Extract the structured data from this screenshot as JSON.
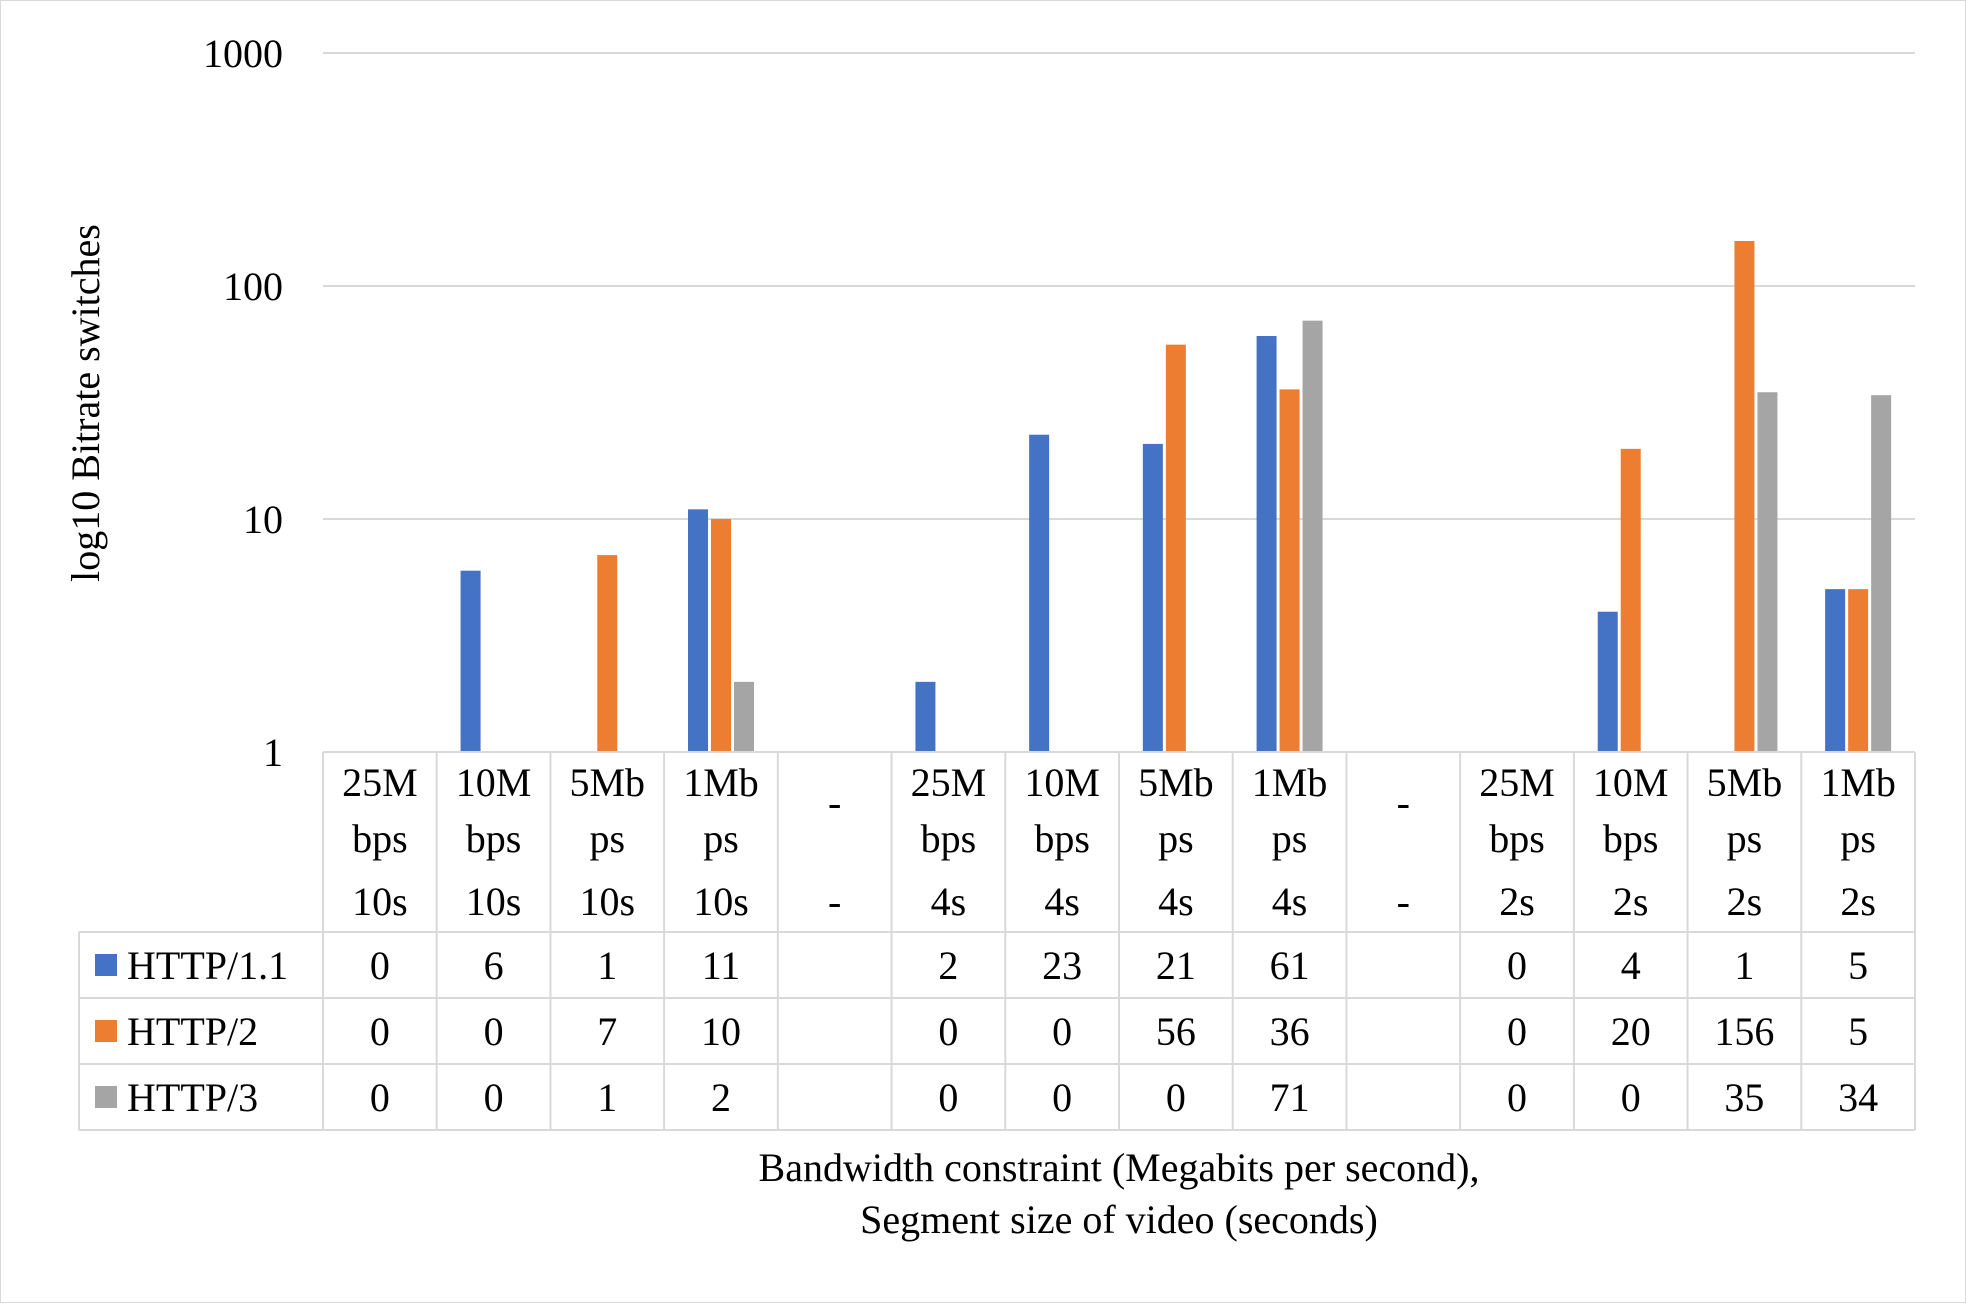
{
  "chart_data": {
    "type": "bar",
    "scale": "log10",
    "ylim": [
      1,
      1000
    ],
    "yticks": [
      "1",
      "10",
      "100",
      "1000"
    ],
    "ylabel": "log10 Bitrate switches",
    "xlabel_lines": [
      "Bandwidth constraint (Megabits per second),",
      "Segment size of video (seconds)"
    ],
    "grid": true,
    "legend_placement": "data-table",
    "categories": [
      {
        "lines": [
          "25M",
          "bps",
          "10s"
        ]
      },
      {
        "lines": [
          "10M",
          "bps",
          "10s"
        ]
      },
      {
        "lines": [
          "5Mb",
          "ps",
          "10s"
        ]
      },
      {
        "lines": [
          "1Mb",
          "ps",
          "10s"
        ]
      },
      {
        "lines": [
          "-",
          "",
          "-"
        ]
      },
      {
        "lines": [
          "25M",
          "bps",
          "4s"
        ]
      },
      {
        "lines": [
          "10M",
          "bps",
          "4s"
        ]
      },
      {
        "lines": [
          "5Mb",
          "ps",
          "4s"
        ]
      },
      {
        "lines": [
          "1Mb",
          "ps",
          "4s"
        ]
      },
      {
        "lines": [
          "-",
          "",
          "-"
        ]
      },
      {
        "lines": [
          "25M",
          "bps",
          "2s"
        ]
      },
      {
        "lines": [
          "10M",
          "bps",
          "2s"
        ]
      },
      {
        "lines": [
          "5Mb",
          "ps",
          "2s"
        ]
      },
      {
        "lines": [
          "1Mb",
          "ps",
          "2s"
        ]
      }
    ],
    "series": [
      {
        "name": "HTTP/1.1",
        "color": "#4472c4",
        "values": [
          0,
          6,
          1,
          11,
          null,
          2,
          23,
          21,
          61,
          null,
          0,
          4,
          1,
          5
        ],
        "labels": [
          "0",
          "6",
          "1",
          "11",
          "",
          "2",
          "23",
          "21",
          "61",
          "",
          "0",
          "4",
          "1",
          "5"
        ]
      },
      {
        "name": "HTTP/2",
        "color": "#ed7d31",
        "values": [
          0,
          0,
          7,
          10,
          null,
          0,
          0,
          56,
          36,
          null,
          0,
          20,
          156,
          5
        ],
        "labels": [
          "0",
          "0",
          "7",
          "10",
          "",
          "0",
          "0",
          "56",
          "36",
          "",
          "0",
          "20",
          "156",
          "5"
        ]
      },
      {
        "name": "HTTP/3",
        "color": "#a5a5a5",
        "values": [
          0,
          0,
          1,
          2,
          null,
          0,
          0,
          0,
          71,
          null,
          0,
          0,
          35,
          34
        ],
        "labels": [
          "0",
          "0",
          "1",
          "2",
          "",
          "0",
          "0",
          "0",
          "71",
          "",
          "0",
          "0",
          "35",
          "34"
        ]
      }
    ]
  }
}
